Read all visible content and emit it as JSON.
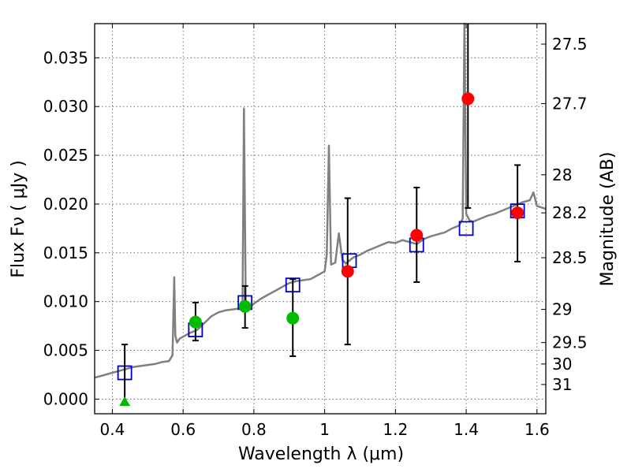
{
  "chart_data": {
    "type": "scatter",
    "xlabel": "Wavelength  λ (μm)",
    "ylabel": "Flux  Fν  ( μJy )",
    "y2label": "Magnitude (AB)",
    "xlim": [
      0.35,
      1.625
    ],
    "ylim": [
      -0.0015,
      0.0385
    ],
    "grid": true,
    "x_ticks": [
      0.4,
      0.6,
      0.8,
      1.0,
      1.2,
      1.4,
      1.6
    ],
    "x_tick_labels": [
      "0.4",
      "0.6",
      "0.8",
      "1",
      "1.2",
      "1.4",
      "1.6"
    ],
    "y_ticks": [
      0.0,
      0.005,
      0.01,
      0.015,
      0.02,
      0.025,
      0.03,
      0.035
    ],
    "y_tick_labels": [
      "0.000",
      "0.005",
      "0.010",
      "0.015",
      "0.020",
      "0.025",
      "0.030",
      "0.035"
    ],
    "y2_ticks": [
      {
        "label": "27.5",
        "flux": 0.0364
      },
      {
        "label": "27.7",
        "flux": 0.0303
      },
      {
        "label": "28",
        "flux": 0.023
      },
      {
        "label": "28.2",
        "flux": 0.0191
      },
      {
        "label": "28.5",
        "flux": 0.0145
      },
      {
        "label": "29",
        "flux": 0.0092
      },
      {
        "label": "29.5",
        "flux": 0.0058
      },
      {
        "label": "30",
        "flux": 0.0036
      },
      {
        "label": "31",
        "flux": 0.0015
      }
    ],
    "colors": {
      "model": "#808080",
      "model_phot": "#0000cc",
      "green_points": "#00bb00",
      "red_points": "#ff0000",
      "errorbars": "#000000",
      "grid": "#555555"
    },
    "series": [
      {
        "kind": "model_spectrum",
        "x": [
          0.35,
          0.36,
          0.38,
          0.4,
          0.42,
          0.44,
          0.46,
          0.48,
          0.5,
          0.52,
          0.54,
          0.56,
          0.57,
          0.575,
          0.578,
          0.583,
          0.59,
          0.6,
          0.62,
          0.64,
          0.66,
          0.68,
          0.7,
          0.72,
          0.74,
          0.76,
          0.768,
          0.772,
          0.777,
          0.785,
          0.8,
          0.82,
          0.84,
          0.86,
          0.88,
          0.9,
          0.92,
          0.94,
          0.96,
          0.98,
          1.0,
          1.006,
          1.012,
          1.018,
          1.03,
          1.04,
          1.05,
          1.06,
          1.08,
          1.1,
          1.12,
          1.14,
          1.16,
          1.18,
          1.2,
          1.22,
          1.24,
          1.26,
          1.28,
          1.3,
          1.32,
          1.34,
          1.36,
          1.38,
          1.39,
          1.395,
          1.4,
          1.41,
          1.42,
          1.44,
          1.46,
          1.48,
          1.5,
          1.52,
          1.54,
          1.56,
          1.58,
          1.59,
          1.6,
          1.625
        ],
        "y": [
          0.0022,
          0.0023,
          0.0025,
          0.0027,
          0.0029,
          0.0031,
          0.0033,
          0.0034,
          0.0035,
          0.0036,
          0.0038,
          0.0039,
          0.0045,
          0.0125,
          0.0065,
          0.0058,
          0.0062,
          0.0064,
          0.0068,
          0.0071,
          0.0078,
          0.0085,
          0.0089,
          0.0091,
          0.0092,
          0.0093,
          0.01,
          0.0298,
          0.0095,
          0.0092,
          0.0098,
          0.0103,
          0.0107,
          0.0111,
          0.0115,
          0.0119,
          0.0121,
          0.0122,
          0.0123,
          0.0127,
          0.0131,
          0.0148,
          0.026,
          0.0138,
          0.014,
          0.017,
          0.0143,
          0.0139,
          0.0145,
          0.0148,
          0.0152,
          0.0155,
          0.0158,
          0.0161,
          0.016,
          0.0163,
          0.0161,
          0.0159,
          0.0164,
          0.0167,
          0.0169,
          0.0171,
          0.0175,
          0.0178,
          0.0185,
          0.0385,
          0.019,
          0.0183,
          0.0182,
          0.0185,
          0.0188,
          0.019,
          0.0193,
          0.0196,
          0.0199,
          0.0202,
          0.0204,
          0.0212,
          0.0198,
          0.0195
        ]
      },
      {
        "kind": "model_photometry",
        "marker": "open-square",
        "x": [
          0.435,
          0.635,
          0.775,
          0.91,
          1.07,
          1.26,
          1.4,
          1.545
        ],
        "y": [
          0.0027,
          0.0071,
          0.0099,
          0.0117,
          0.0142,
          0.0158,
          0.0175,
          0.0193
        ]
      },
      {
        "kind": "observed",
        "marker": "filled-circle",
        "color": "green",
        "x": [
          0.635,
          0.775,
          0.91
        ],
        "y": [
          0.0079,
          0.0095,
          0.0083
        ],
        "yerr_low": [
          0.0019,
          0.0022,
          0.0039
        ],
        "yerr_high": [
          0.002,
          0.0021,
          0.004
        ]
      },
      {
        "kind": "observed",
        "marker": "filled-circle",
        "color": "red",
        "x": [
          1.065,
          1.26,
          1.405,
          1.545
        ],
        "y": [
          0.0131,
          0.0168,
          0.0308,
          0.0191
        ],
        "yerr_low": [
          0.0075,
          0.0048,
          0.0112,
          0.005
        ],
        "yerr_high": [
          0.0075,
          0.0049,
          0.02,
          0.0049
        ]
      },
      {
        "kind": "upper_limit",
        "marker": "triangle-up",
        "color": "green",
        "x": [
          0.435
        ],
        "y": [
          -0.0003
        ],
        "errbar_top": [
          0.0056
        ]
      }
    ]
  }
}
